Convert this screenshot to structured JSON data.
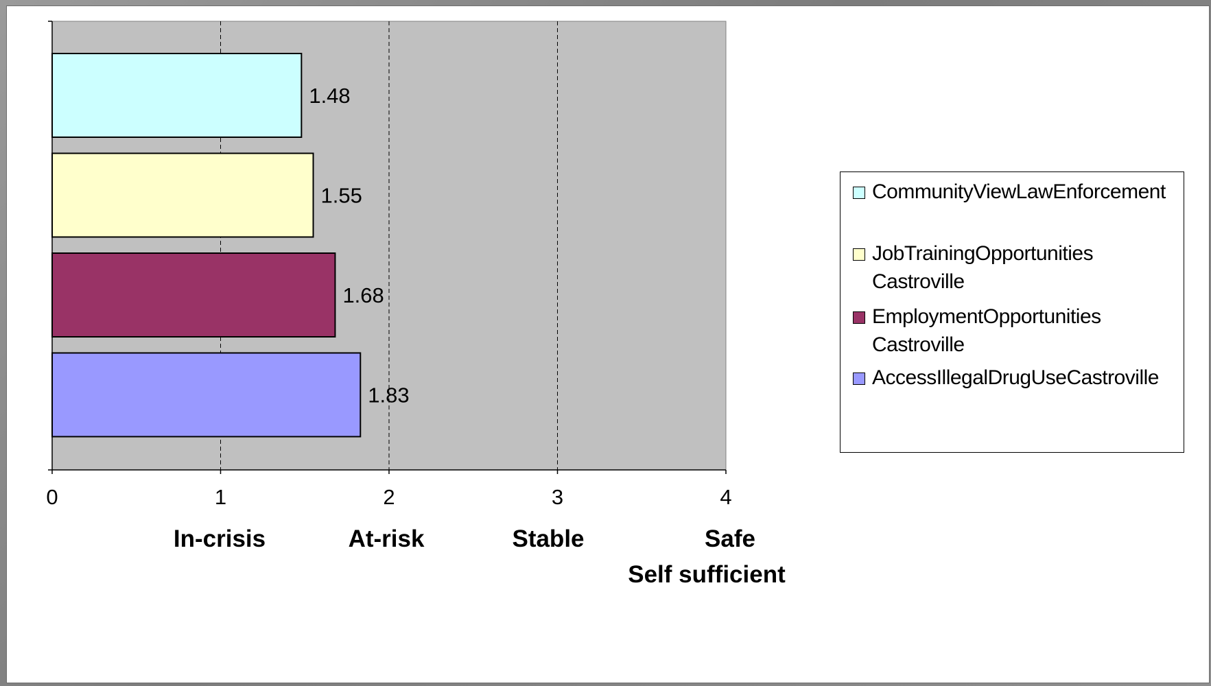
{
  "chart_data": {
    "type": "bar",
    "orientation": "horizontal",
    "title": "",
    "xlabel": "",
    "ylabel": "",
    "xlim": [
      0,
      4
    ],
    "xticks": [
      0,
      1,
      2,
      3,
      4
    ],
    "xtick_labels": [
      "0",
      "1",
      "2",
      "3",
      "4"
    ],
    "category_labels": [
      "In-crisis",
      "At-risk",
      "Stable",
      "Safe"
    ],
    "category_sublabels": [
      "",
      "",
      "",
      "Self sufficient"
    ],
    "grid": "vertical dashed",
    "legend_position": "right",
    "plot_background": "#c0c0c0",
    "series": [
      {
        "name": "CommunityViewLawEnforcement",
        "value": 1.48,
        "label": "1.48",
        "color": "#ccffff"
      },
      {
        "name": "JobTrainingOpportunities Castroville",
        "value": 1.55,
        "label": "1.55",
        "color": "#ffffcc"
      },
      {
        "name": "EmploymentOpportunities Castroville",
        "value": 1.68,
        "label": "1.68",
        "color": "#993366"
      },
      {
        "name": "AccessIllegalDrugUseCastroville",
        "value": 1.83,
        "label": "1.83",
        "color": "#9999ff"
      }
    ]
  },
  "legend": {
    "items": [
      {
        "line1": "CommunityViewLawEnforcement",
        "line2": "",
        "color": "#ccffff"
      },
      {
        "line1": "JobTrainingOpportunities",
        "line2": "Castroville",
        "color": "#ffffcc"
      },
      {
        "line1": "EmploymentOpportunities",
        "line2": "Castroville",
        "color": "#993366"
      },
      {
        "line1": "AccessIllegalDrugUseCastroville",
        "line2": "",
        "color": "#9999ff"
      }
    ]
  }
}
